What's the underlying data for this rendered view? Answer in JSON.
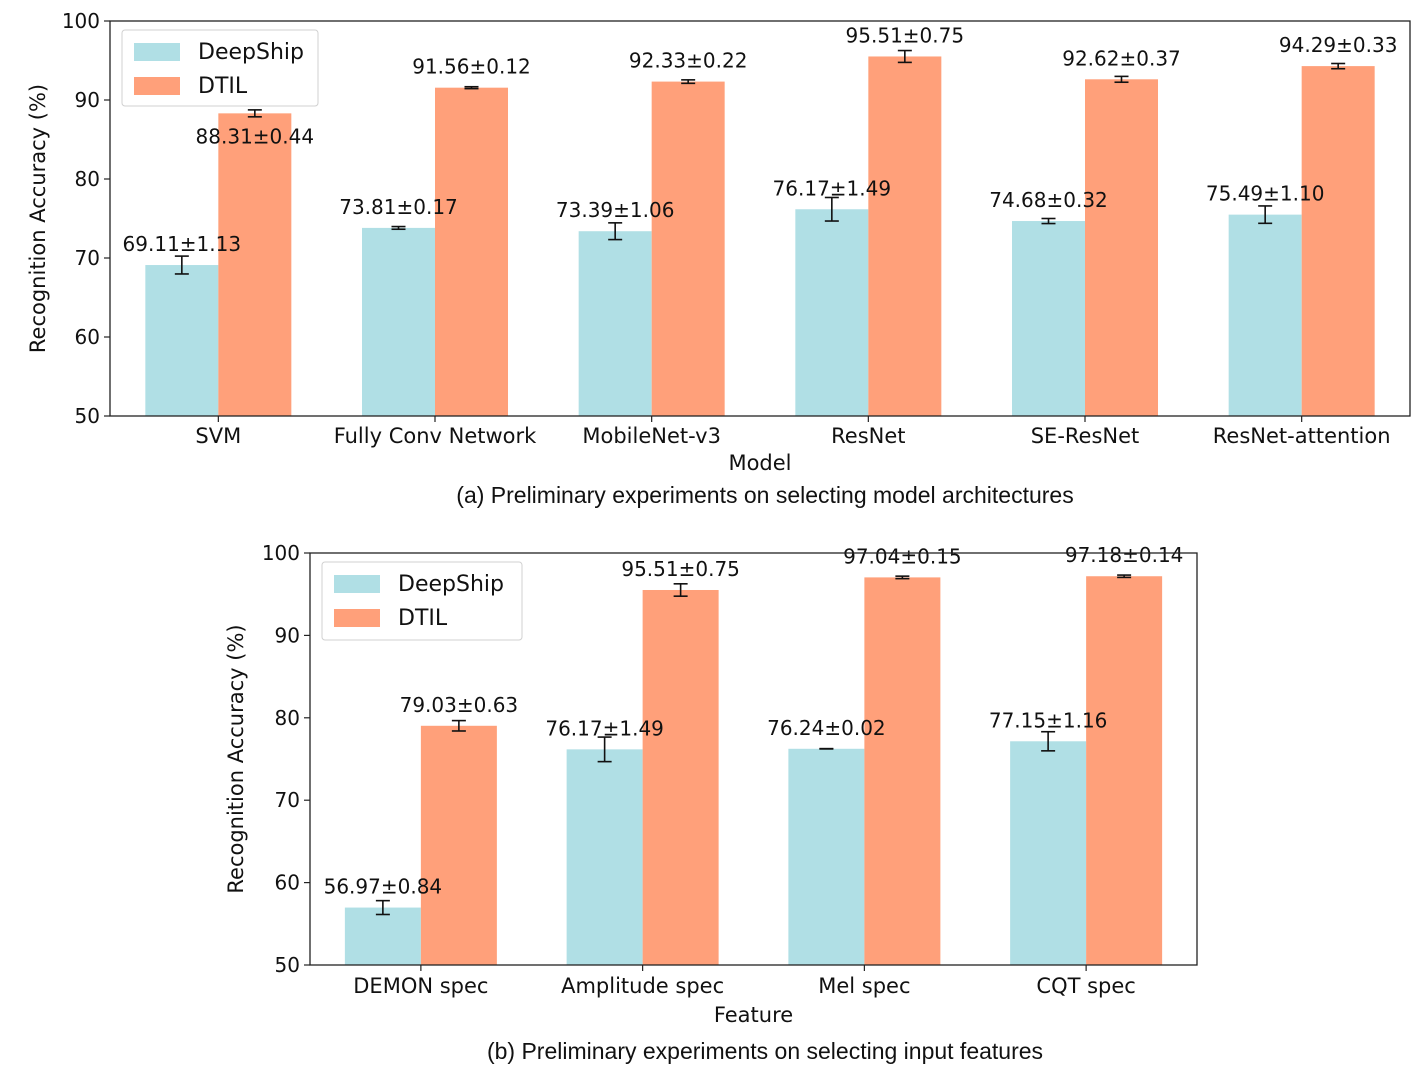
{
  "colors": {
    "deepship": "#b0dfe5",
    "dtil": "#ffa07a",
    "axis": "#222222",
    "text": "#111111"
  },
  "chart_data": [
    {
      "type": "bar",
      "panel": "a",
      "caption": "(a)  Preliminary experiments on selecting model architectures",
      "xlabel": "Model",
      "ylabel": "Recognition Accuracy (%)",
      "ylim": [
        50,
        100
      ],
      "yticks": [
        50,
        60,
        70,
        80,
        90,
        100
      ],
      "categories": [
        "SVM",
        "Fully Conv Network",
        "MobileNet-v3",
        "ResNet",
        "SE-ResNet",
        "ResNet-attention"
      ],
      "series": [
        {
          "name": "DeepShip",
          "values": [
            69.11,
            73.81,
            73.39,
            76.17,
            74.68,
            75.49
          ],
          "errors": [
            1.13,
            0.17,
            1.06,
            1.49,
            0.32,
            1.1
          ],
          "labels": [
            "69.11±1.13",
            "73.81±0.17",
            "73.39±1.06",
            "76.17±1.49",
            "74.68±0.32",
            "75.49±1.10"
          ]
        },
        {
          "name": "DTIL",
          "values": [
            88.31,
            91.56,
            92.33,
            95.51,
            92.62,
            94.29
          ],
          "errors": [
            0.44,
            0.12,
            0.22,
            0.75,
            0.37,
            0.33
          ],
          "labels": [
            "88.31±0.44",
            "91.56±0.12",
            "92.33±0.22",
            "95.51±0.75",
            "92.62±0.37",
            "94.29±0.33"
          ]
        }
      ],
      "legend": {
        "position": "top-left",
        "entries": [
          "DeepShip",
          "DTIL"
        ]
      }
    },
    {
      "type": "bar",
      "panel": "b",
      "caption": "(b)  Preliminary experiments on selecting input features",
      "xlabel": "Feature",
      "ylabel": "Recognition Accuracy (%)",
      "ylim": [
        50,
        100
      ],
      "yticks": [
        50,
        60,
        70,
        80,
        90,
        100
      ],
      "categories": [
        "DEMON spec",
        "Amplitude spec",
        "Mel spec",
        "CQT spec"
      ],
      "series": [
        {
          "name": "DeepShip",
          "values": [
            56.97,
            76.17,
            76.24,
            77.15
          ],
          "errors": [
            0.84,
            1.49,
            0.02,
            1.16
          ],
          "labels": [
            "56.97±0.84",
            "76.17±1.49",
            "76.24±0.02",
            "77.15±1.16"
          ]
        },
        {
          "name": "DTIL",
          "values": [
            79.03,
            95.51,
            97.04,
            97.18
          ],
          "errors": [
            0.63,
            0.75,
            0.15,
            0.14
          ],
          "labels": [
            "79.03±0.63",
            "95.51±0.75",
            "97.04±0.15",
            "97.18±0.14"
          ]
        }
      ],
      "legend": {
        "position": "top-left",
        "entries": [
          "DeepShip",
          "DTIL"
        ]
      }
    }
  ]
}
